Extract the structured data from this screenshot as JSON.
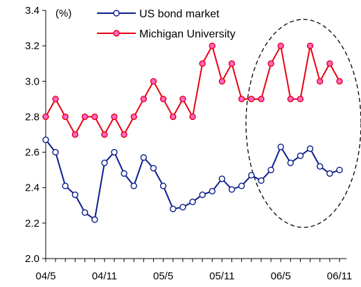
{
  "chart_data": {
    "type": "line",
    "unit_label": "(%)",
    "y_ticks": [
      "2.0",
      "2.2",
      "2.4",
      "2.6",
      "2.8",
      "3.0",
      "3.2",
      "3.4"
    ],
    "ylim": [
      2.0,
      3.4
    ],
    "x_tick_labels": [
      "04/5",
      "04/11",
      "05/5",
      "05/11",
      "06/5",
      "06/11"
    ],
    "x_tick_indices": [
      0,
      6,
      12,
      18,
      24,
      30
    ],
    "point_count": 31,
    "grid": false,
    "legend_position": "top",
    "highlight": "dashed ellipse around most recent months",
    "series": [
      {
        "name": "US bond market",
        "color": "#0a1e8c",
        "marker": "open-circle",
        "values": [
          2.67,
          2.6,
          2.41,
          2.36,
          2.26,
          2.22,
          2.54,
          2.6,
          2.48,
          2.41,
          2.57,
          2.51,
          2.41,
          2.28,
          2.29,
          2.32,
          2.36,
          2.38,
          2.45,
          2.39,
          2.41,
          2.47,
          2.44,
          2.5,
          2.63,
          2.54,
          2.58,
          2.62,
          2.52,
          2.48,
          2.5
        ]
      },
      {
        "name": "Michigan University",
        "color": "#e60012",
        "marker": "filled-circle",
        "values": [
          2.8,
          2.9,
          2.8,
          2.7,
          2.8,
          2.8,
          2.7,
          2.8,
          2.7,
          2.8,
          2.9,
          3.0,
          2.9,
          2.8,
          2.9,
          2.8,
          3.1,
          3.2,
          3.0,
          3.1,
          2.9,
          2.9,
          2.9,
          3.1,
          3.2,
          2.9,
          2.9,
          3.2,
          3.0,
          3.1,
          3.0
        ]
      }
    ]
  }
}
